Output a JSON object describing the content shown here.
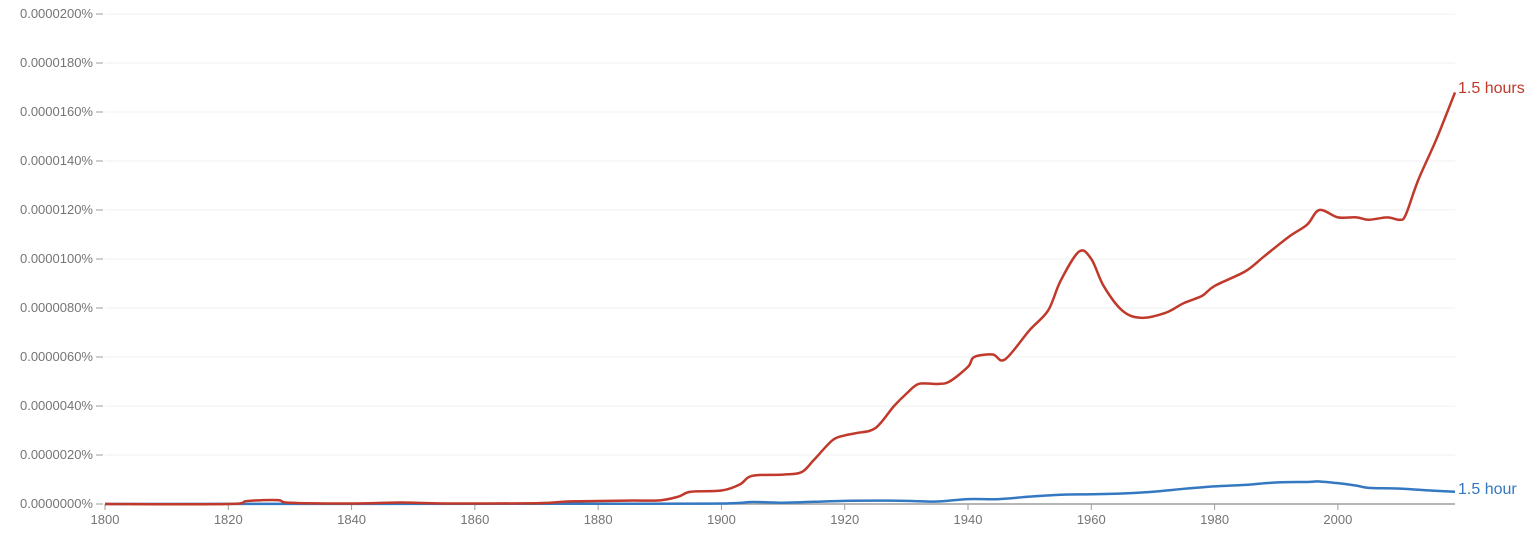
{
  "chart_data": {
    "type": "line",
    "title": "",
    "xlabel": "",
    "ylabel": "",
    "xlim": [
      1800,
      2019
    ],
    "ylim": [
      0,
      2e-05
    ],
    "grid": true,
    "legend_position": "inline-right",
    "x_ticks": [
      1800,
      1820,
      1840,
      1860,
      1880,
      1900,
      1920,
      1940,
      1960,
      1980,
      2000
    ],
    "x_tick_labels": [
      "1800",
      "1820",
      "1840",
      "1860",
      "1880",
      "1900",
      "1920",
      "1940",
      "1960",
      "1980",
      "2000"
    ],
    "y_ticks": [
      0,
      2e-06,
      4e-06,
      6e-06,
      8e-06,
      1e-05,
      1.2e-05,
      1.4e-05,
      1.6e-05,
      1.8e-05,
      2e-05
    ],
    "y_tick_labels": [
      "0.0000000%",
      "0.0000020%",
      "0.0000040%",
      "0.0000060%",
      "0.0000080%",
      "0.0000100%",
      "0.0000120%",
      "0.0000140%",
      "0.0000160%",
      "0.0000180%",
      "0.0000200%"
    ],
    "value_unit": "percent",
    "series": [
      {
        "name": "1.5 hours",
        "color": "#c0392b",
        "x": [
          1800,
          1820,
          1823,
          1828,
          1830,
          1840,
          1848,
          1855,
          1870,
          1875,
          1880,
          1885,
          1890,
          1893,
          1895,
          1900,
          1903,
          1905,
          1910,
          1913,
          1915,
          1918,
          1920,
          1922,
          1925,
          1928,
          1930,
          1932,
          1935,
          1937,
          1940,
          1941,
          1944,
          1946,
          1950,
          1953,
          1955,
          1958,
          1960,
          1962,
          1965,
          1968,
          1972,
          1975,
          1978,
          1980,
          1985,
          1988,
          1992,
          1995,
          1997,
          2000,
          2003,
          2005,
          2008,
          2010,
          2011,
          2013,
          2016,
          2019
        ],
        "values": [
          0,
          0,
          0.012,
          0.016,
          0.005,
          0.002,
          0.006,
          0.002,
          0.003,
          0.01,
          0.012,
          0.014,
          0.015,
          0.03,
          0.05,
          0.055,
          0.08,
          0.115,
          0.12,
          0.13,
          0.18,
          0.26,
          0.28,
          0.29,
          0.31,
          0.4,
          0.45,
          0.49,
          0.49,
          0.5,
          0.56,
          0.6,
          0.61,
          0.59,
          0.71,
          0.79,
          0.91,
          1.03,
          1.0,
          0.89,
          0.79,
          0.76,
          0.78,
          0.82,
          0.85,
          0.89,
          0.95,
          1.01,
          1.09,
          1.14,
          1.2,
          1.17,
          1.17,
          1.16,
          1.17,
          1.16,
          1.18,
          1.32,
          1.49,
          1.68
        ],
        "values_scale": "x 0.00001%"
      },
      {
        "name": "1.5 hour",
        "color": "#3478c1",
        "x": [
          1800,
          1880,
          1900,
          1905,
          1910,
          1915,
          1920,
          1925,
          1930,
          1935,
          1940,
          1945,
          1950,
          1955,
          1960,
          1965,
          1970,
          1975,
          1980,
          1985,
          1990,
          1995,
          1997,
          2000,
          2003,
          2005,
          2010,
          2015,
          2019
        ],
        "values": [
          0,
          0.001,
          0.002,
          0.008,
          0.005,
          0.009,
          0.013,
          0.014,
          0.013,
          0.01,
          0.02,
          0.02,
          0.03,
          0.038,
          0.04,
          0.043,
          0.05,
          0.062,
          0.072,
          0.078,
          0.088,
          0.09,
          0.092,
          0.085,
          0.075,
          0.066,
          0.063,
          0.055,
          0.05
        ],
        "values_scale": "x 0.00001%"
      }
    ]
  },
  "labels": {
    "series_a": "1.5 hours",
    "series_b": "1.5 hour"
  }
}
